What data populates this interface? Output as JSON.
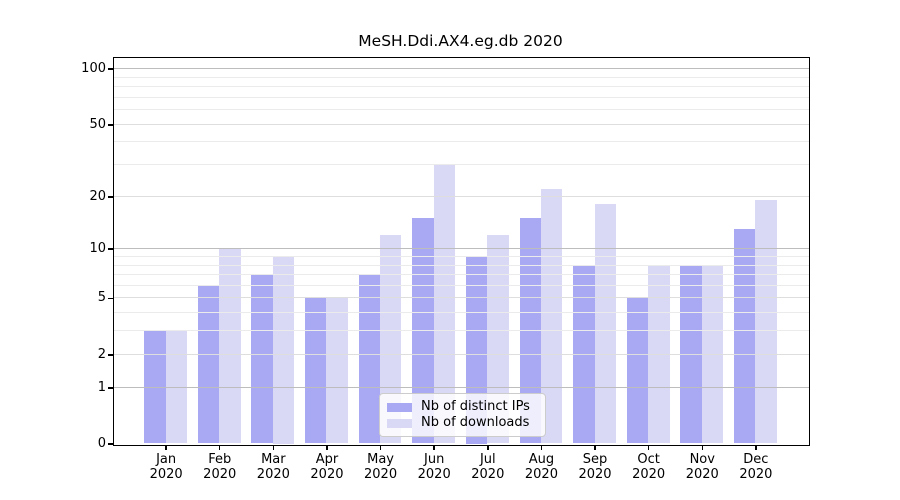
{
  "title": "MeSH.Ddi.AX4.eg.db 2020",
  "chart_data": {
    "type": "bar",
    "title": "MeSH.Ddi.AX4.eg.db 2020",
    "categories": [
      "Jan 2020",
      "Feb 2020",
      "Mar 2020",
      "Apr 2020",
      "May 2020",
      "Jun 2020",
      "Jul 2020",
      "Aug 2020",
      "Sep 2020",
      "Oct 2020",
      "Nov 2020",
      "Dec 2020"
    ],
    "series": [
      {
        "name": "Nb of distinct IPs",
        "color": "#a9a9f3",
        "values": [
          3,
          6,
          7,
          5,
          7,
          15,
          9,
          15,
          8,
          5,
          8,
          13
        ]
      },
      {
        "name": "Nb of downloads",
        "color": "#d9d9f6",
        "values": [
          3,
          10,
          9,
          5,
          12,
          30,
          12,
          22,
          18,
          8,
          8,
          19
        ]
      }
    ],
    "yscale": "log1p",
    "ylim": [
      0,
      130
    ],
    "y_major_ticks": [
      0,
      1,
      2,
      5,
      10,
      20,
      50,
      100
    ],
    "y_minor_ticks": [
      3,
      4,
      6,
      7,
      8,
      9,
      30,
      40,
      60,
      70,
      80,
      90
    ],
    "grid": true,
    "legend_position": "lower center"
  },
  "colors": {
    "axis": "#000000",
    "grid_strong": "#bdbdbd",
    "grid_major": "#dedede",
    "grid_minor": "#ebebeb",
    "legend_border": "#cccccc"
  }
}
